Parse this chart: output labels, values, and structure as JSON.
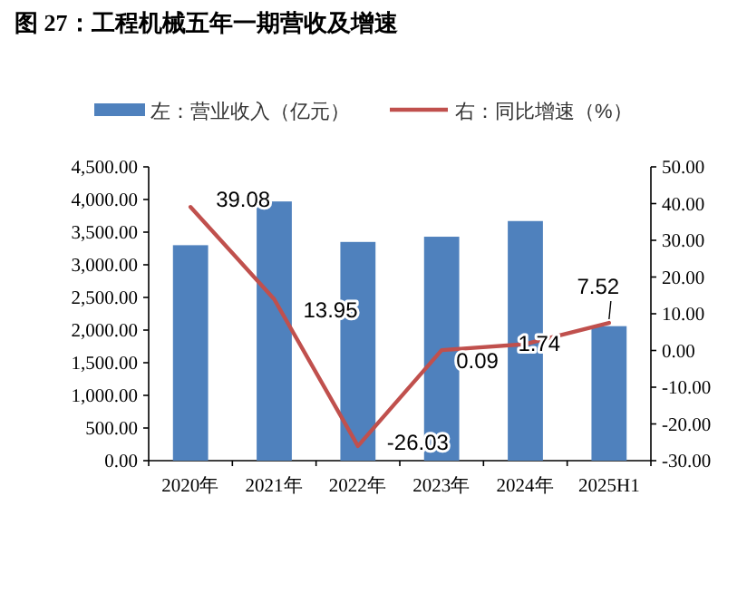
{
  "chart_data": {
    "type": "bar",
    "title": "图 27：工程机械五年一期营收及增速",
    "categories": [
      "2020年",
      "2021年",
      "2022年",
      "2023年",
      "2024年",
      "2025H1"
    ],
    "series": [
      {
        "name": "左：营业收入（亿元）",
        "color": "#4f81bd",
        "values": [
          3300,
          3970,
          3350,
          3430,
          3670,
          2060
        ]
      },
      {
        "name": "右：同比增速（%）",
        "type": "line",
        "axis": "y2",
        "color": "#c0504d",
        "values": [
          39.08,
          13.95,
          -26.03,
          0.09,
          1.74,
          7.52
        ],
        "value_labels": [
          "39.08",
          "13.95",
          "-26.03",
          "0.09",
          "1.74",
          "7.52"
        ]
      }
    ],
    "ylim": [
      0,
      4500
    ],
    "yticks": [
      {
        "value": 0,
        "label": "0.00"
      },
      {
        "value": 500,
        "label": "500.00"
      },
      {
        "value": 1000,
        "label": "1,000.00"
      },
      {
        "value": 1500,
        "label": "1,500.00"
      },
      {
        "value": 2000,
        "label": "2,000.00"
      },
      {
        "value": 2500,
        "label": "2,500.00"
      },
      {
        "value": 3000,
        "label": "3,000.00"
      },
      {
        "value": 3500,
        "label": "3,500.00"
      },
      {
        "value": 4000,
        "label": "4,000.00"
      },
      {
        "value": 4500,
        "label": "4,500.00"
      }
    ],
    "y2lim": [
      -30,
      50
    ],
    "y2ticks": [
      {
        "value": -30,
        "label": "-30.00"
      },
      {
        "value": -20,
        "label": "-20.00"
      },
      {
        "value": -10,
        "label": "-10.00"
      },
      {
        "value": 0,
        "label": "0.00"
      },
      {
        "value": 10,
        "label": "10.00"
      },
      {
        "value": 20,
        "label": "20.00"
      },
      {
        "value": 30,
        "label": "30.00"
      },
      {
        "value": 40,
        "label": "40.00"
      },
      {
        "value": 50,
        "label": "50.00"
      }
    ],
    "legend": "top",
    "grid": false
  }
}
